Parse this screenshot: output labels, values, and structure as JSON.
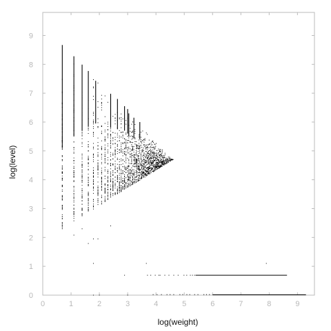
{
  "chart_data": {
    "type": "scatter",
    "xlabel": "log(weight)",
    "ylabel": "log(level)",
    "xlim": [
      0,
      9.6
    ],
    "ylim": [
      0,
      9.8
    ],
    "xticks": [
      0,
      1,
      2,
      3,
      4,
      5,
      6,
      7,
      8,
      9
    ],
    "yticks": [
      0,
      1,
      2,
      3,
      4,
      5,
      6,
      7,
      8,
      9
    ],
    "grid": false,
    "axis_color": "#bbbbbb",
    "point_color": "#000000",
    "column_x": [
      0.69,
      1.1,
      1.39,
      1.61,
      1.79,
      1.95,
      2.08,
      2.2,
      2.3,
      2.4,
      2.48,
      2.56,
      2.64,
      2.71,
      2.77,
      2.83,
      2.89,
      2.94,
      3.0,
      3.04,
      3.09,
      3.14,
      3.18,
      3.22,
      3.26,
      3.3,
      3.33,
      3.37,
      3.4,
      3.43,
      3.47,
      3.5,
      3.53,
      3.56,
      3.58,
      3.61,
      3.64,
      3.66,
      3.69,
      3.71,
      3.74,
      3.76,
      3.78,
      3.81,
      3.83,
      3.85,
      3.87,
      3.89,
      3.91,
      3.93,
      3.95,
      3.97,
      3.99,
      4.01,
      4.03,
      4.04,
      4.06,
      4.08,
      4.09,
      4.11,
      4.13,
      4.14,
      4.16,
      4.17,
      4.19,
      4.2,
      4.22,
      4.23,
      4.25,
      4.26,
      4.28,
      4.3,
      4.32,
      4.34,
      4.36,
      4.38,
      4.4,
      4.42,
      4.44,
      4.46,
      4.48,
      4.5,
      4.52,
      4.54,
      4.56,
      4.58,
      4.6,
      4.62
    ],
    "solid_columns": [
      {
        "x": 0.69,
        "y_min": 5.1,
        "y_max": 8.67
      },
      {
        "x": 1.1,
        "y_min": 5.5,
        "y_max": 8.28
      },
      {
        "x": 1.39,
        "y_min": 5.7,
        "y_max": 7.99
      },
      {
        "x": 1.61,
        "y_min": 5.85,
        "y_max": 7.77
      },
      {
        "x": 1.87,
        "y_min": 5.95,
        "y_max": 7.43
      },
      {
        "x": 2.4,
        "y_min": 5.8,
        "y_max": 6.98
      },
      {
        "x": 2.64,
        "y_min": 5.75,
        "y_max": 6.8
      },
      {
        "x": 2.89,
        "y_min": 5.7,
        "y_max": 6.55
      },
      {
        "x": 3.0,
        "y_min": 5.6,
        "y_max": 6.45
      },
      {
        "x": 3.04,
        "y_min": 5.5,
        "y_max": 6.3
      },
      {
        "x": 3.22,
        "y_min": 5.45,
        "y_max": 6.15
      },
      {
        "x": 3.43,
        "y_min": 5.4,
        "y_max": 6.0
      }
    ],
    "triangle_region": {
      "apex_x": 4.6,
      "apex_y": 4.7,
      "left_x": 0.69,
      "left_y_max": 8.67,
      "left_y_min": 2.3
    },
    "outlier_points": [
      {
        "x": 0.69,
        "y": 2.3
      },
      {
        "x": 1.1,
        "y": 2.08
      },
      {
        "x": 1.39,
        "y": 2.3
      },
      {
        "x": 1.61,
        "y": 1.79
      },
      {
        "x": 1.79,
        "y": 1.1
      },
      {
        "x": 1.79,
        "y": 1.95
      },
      {
        "x": 1.95,
        "y": 1.95
      },
      {
        "x": 2.4,
        "y": 2.4
      },
      {
        "x": 2.89,
        "y": 0.69
      },
      {
        "x": 3.66,
        "y": 1.1
      },
      {
        "x": 7.9,
        "y": 1.1
      },
      {
        "x": 5.29,
        "y": 0.69
      },
      {
        "x": 4.1,
        "y": 0.69
      },
      {
        "x": 1.79,
        "y": 0.0
      },
      {
        "x": 2.0,
        "y": 0.0
      },
      {
        "x": 3.0,
        "y": 0.0
      }
    ],
    "band_y0": {
      "y": 0.0,
      "x_start": 3.9,
      "x_end": 9.3,
      "dense_from": 6.0
    },
    "band_y069": {
      "y": 0.69,
      "x_start": 3.7,
      "x_end": 8.63,
      "dense_from": 5.4
    }
  }
}
